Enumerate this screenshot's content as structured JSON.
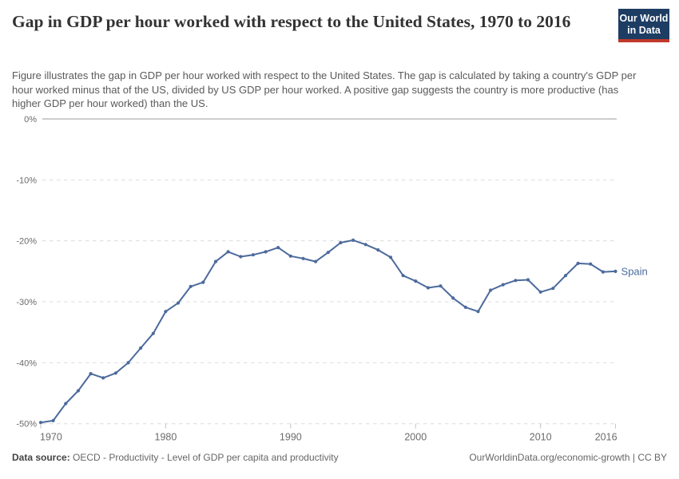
{
  "header": {
    "title": "Gap in GDP per hour worked with respect to the United States, 1970 to 2016",
    "subtitle": "Figure illustrates the gap in GDP per hour worked with respect to the United States. The gap is calculated by taking a country's GDP per hour worked minus that of the US, divided by US GDP per hour worked. A positive gap suggests the country is more productive (has higher GDP per hour worked) than the US.",
    "logo": {
      "line1": "Our World",
      "line2": "in Data",
      "bg_color": "#1d3d63",
      "accent_color": "#c0392b"
    }
  },
  "chart_data": {
    "type": "line",
    "title": "Gap in GDP per hour worked with respect to the United States, 1970 to 2016",
    "xlabel": "",
    "ylabel": "",
    "xlim": [
      1970,
      2016
    ],
    "ylim": [
      -50,
      0
    ],
    "grid": "horizontal dashed gridlines, solid line at 0%",
    "legend": "label at end of line",
    "x_ticks": [
      1970,
      1980,
      1990,
      2000,
      2010,
      2016
    ],
    "y_ticks": [
      {
        "value": 0,
        "label": "0%"
      },
      {
        "value": -10,
        "label": "-10%"
      },
      {
        "value": -20,
        "label": "-20%"
      },
      {
        "value": -30,
        "label": "-30%"
      },
      {
        "value": -40,
        "label": "-40%"
      },
      {
        "value": -50,
        "label": "-50%"
      }
    ],
    "series": [
      {
        "name": "Spain",
        "color": "#4C6A9C",
        "x": [
          1970,
          1971,
          1972,
          1973,
          1974,
          1975,
          1976,
          1977,
          1978,
          1979,
          1980,
          1981,
          1982,
          1983,
          1984,
          1985,
          1986,
          1987,
          1988,
          1989,
          1990,
          1991,
          1992,
          1993,
          1994,
          1995,
          1996,
          1997,
          1998,
          1999,
          2000,
          2001,
          2002,
          2003,
          2004,
          2005,
          2006,
          2007,
          2008,
          2009,
          2010,
          2011,
          2012,
          2013,
          2014,
          2015,
          2016
        ],
        "values": [
          -49.8,
          -49.5,
          -46.7,
          -44.6,
          -41.8,
          -42.5,
          -41.7,
          -40.0,
          -37.6,
          -35.2,
          -31.6,
          -30.2,
          -27.5,
          -26.8,
          -23.4,
          -21.8,
          -22.6,
          -22.3,
          -21.8,
          -21.1,
          -22.5,
          -22.9,
          -23.4,
          -21.9,
          -20.3,
          -19.9,
          -20.6,
          -21.5,
          -22.7,
          -25.7,
          -26.6,
          -27.7,
          -27.4,
          -29.4,
          -30.9,
          -31.6,
          -28.1,
          -27.2,
          -26.5,
          -26.4,
          -28.4,
          -27.8,
          -25.7,
          -23.7,
          -23.8,
          -25.1,
          -25.0
        ]
      }
    ]
  },
  "footer": {
    "data_source_label": "Data source:",
    "data_source_value": "OECD - Productivity - Level of GDP per capita and productivity",
    "credit": "OurWorldinData.org/economic-growth | CC BY"
  }
}
